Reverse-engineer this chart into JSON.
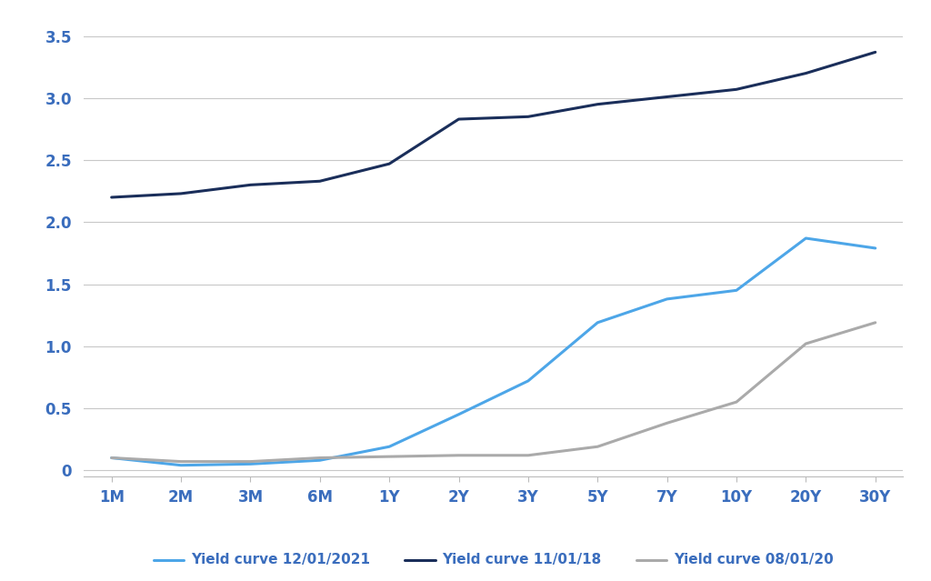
{
  "x_labels": [
    "1M",
    "2M",
    "3M",
    "6M",
    "1Y",
    "2Y",
    "3Y",
    "5Y",
    "7Y",
    "10Y",
    "20Y",
    "30Y"
  ],
  "curve_2021": [
    0.1,
    0.04,
    0.05,
    0.08,
    0.19,
    0.45,
    0.72,
    1.19,
    1.38,
    1.45,
    1.87,
    1.79
  ],
  "curve_2018": [
    2.2,
    2.23,
    2.3,
    2.33,
    2.47,
    2.83,
    2.85,
    2.95,
    3.01,
    3.07,
    3.2,
    3.37
  ],
  "curve_2020": [
    0.1,
    0.07,
    0.07,
    0.1,
    0.11,
    0.12,
    0.12,
    0.19,
    0.38,
    0.55,
    1.02,
    1.19
  ],
  "color_2021": "#4da6e8",
  "color_2018": "#1a2e5a",
  "color_2020": "#aaaaaa",
  "label_2021": "Yield curve 12/01/2021",
  "label_2018": "Yield curve 11/01/18",
  "label_2020": "Yield curve 08/01/20",
  "ylim": [
    -0.05,
    3.65
  ],
  "ytick_values": [
    0.0,
    0.5,
    1.0,
    1.5,
    2.0,
    2.5,
    3.0,
    3.5
  ],
  "ytick_labels": [
    "0",
    "0.5",
    "1.0",
    "1.5",
    "2.0",
    "2.5",
    "3.0",
    "3.5"
  ],
  "background_color": "#ffffff",
  "grid_color": "#c8c8c8",
  "tick_color": "#3a6dbd",
  "line_width": 2.2,
  "tick_fontsize": 12,
  "legend_fontsize": 11
}
